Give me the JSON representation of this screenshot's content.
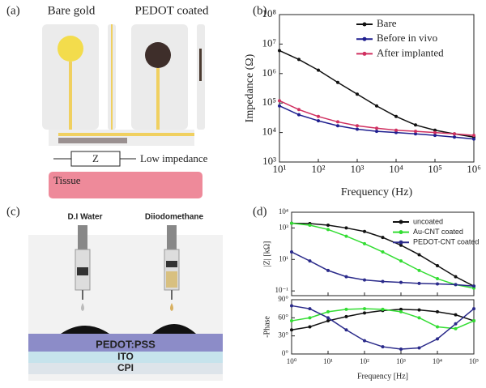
{
  "diagram_a": {
    "panel_label": "(a)",
    "bare": "Bare gold",
    "coated": "PEDOT coated",
    "z": "Z",
    "low": "Low impedance",
    "tissue": "Tissue"
  },
  "diagram_c": {
    "panel_label": "(c)",
    "water": "D.I  Water",
    "diiodo": "Diiodomethane",
    "layers": [
      "PEDOT:PSS",
      "ITO",
      "CPI"
    ]
  },
  "chart_data": [
    {
      "type": "line",
      "panel_label": "(b)",
      "xscale": "log",
      "x": [
        10,
        31.6,
        100,
        316,
        1000,
        3162,
        10000,
        31623,
        100000,
        316228,
        1000000
      ],
      "xlim": [
        10,
        1000000
      ],
      "xticks": [
        {
          "value": 10,
          "label": "10¹"
        },
        {
          "value": 100,
          "label": "10²"
        },
        {
          "value": 1000,
          "label": "10³"
        },
        {
          "value": 10000,
          "label": "10⁴"
        },
        {
          "value": 100000,
          "label": "10⁵"
        },
        {
          "value": 1000000,
          "label": "10⁶"
        }
      ],
      "x_label": "Frequency (Hz)",
      "legend": "upper right",
      "subplots": [
        {
          "yscale": "log",
          "ylim": [
            1000,
            100000000
          ],
          "y_label": "Impedance (Ω)",
          "yticks": [
            {
              "value": 1000,
              "label": "10³"
            },
            {
              "value": 10000,
              "label": "10⁴"
            },
            {
              "value": 100000,
              "label": "10⁵"
            },
            {
              "value": 1000000,
              "label": "10⁶"
            },
            {
              "value": 10000000,
              "label": "10⁷"
            },
            {
              "value": 100000000,
              "label": "10⁸"
            }
          ],
          "series": [
            {
              "name": "Bare",
              "color": "#111111",
              "values": [
                6000000,
                3000000,
                1300000,
                500000,
                200000,
                80000,
                35000,
                18000,
                12000,
                9000,
                7000
              ]
            },
            {
              "name": "Before in vivo",
              "color": "#1f1f8f",
              "values": [
                80000,
                40000,
                25000,
                17000,
                13000,
                11000,
                10000,
                9000,
                8000,
                7000,
                6000
              ]
            },
            {
              "name": "After implanted",
              "color": "#d03060",
              "values": [
                120000,
                60000,
                35000,
                23000,
                17000,
                14000,
                12000,
                11000,
                10000,
                9000,
                8000
              ]
            }
          ]
        }
      ]
    },
    {
      "type": "line",
      "panel_label": "(d)",
      "xscale": "log",
      "x": [
        1,
        3.16,
        10,
        31.6,
        100,
        316,
        1000,
        3162,
        10000,
        31623,
        100000
      ],
      "xlim": [
        1,
        100000
      ],
      "xticks": [
        {
          "value": 1,
          "label": "10⁰"
        },
        {
          "value": 10,
          "label": "10¹"
        },
        {
          "value": 100,
          "label": "10²"
        },
        {
          "value": 1000,
          "label": "10³"
        },
        {
          "value": 10000,
          "label": "10⁴"
        },
        {
          "value": 100000,
          "label": "10⁵"
        }
      ],
      "x_label": "Frequency [Hz]",
      "legend": "upper right",
      "subplots": [
        {
          "yscale": "log",
          "ylim": [
            0.05,
            10000
          ],
          "y_label": "|Z| [kΩ]",
          "yticks": [
            {
              "value": 0.1,
              "label": "10⁻¹"
            },
            {
              "value": 10,
              "label": "10¹"
            },
            {
              "value": 1000,
              "label": "10³"
            },
            {
              "value": 10000,
              "label": "10⁴"
            }
          ],
          "series": [
            {
              "name": "uncoated",
              "color": "#111111",
              "values": [
                2000,
                1900,
                1500,
                1000,
                600,
                250,
                80,
                20,
                4,
                0.8,
                0.2
              ]
            },
            {
              "name": "Au-CNT coated",
              "color": "#33dd33",
              "values": [
                2000,
                1500,
                800,
                300,
                100,
                30,
                8,
                2,
                0.6,
                0.25,
                0.15
              ]
            },
            {
              "name": "PEDOT-CNT coated",
              "color": "#2a2a8a",
              "values": [
                30,
                8,
                2,
                0.8,
                0.5,
                0.4,
                0.35,
                0.3,
                0.28,
                0.25,
                0.2
              ]
            }
          ]
        },
        {
          "yscale": "linear",
          "ylim": [
            0,
            90
          ],
          "y_label": "-Phase",
          "yticks": [
            {
              "value": 0,
              "label": "0°"
            },
            {
              "value": 30,
              "label": "30°"
            },
            {
              "value": 60,
              "label": "60°"
            },
            {
              "value": 90,
              "label": "90°"
            }
          ],
          "series": [
            {
              "color": "#111111",
              "values": [
                40,
                45,
                55,
                62,
                68,
                72,
                74,
                73,
                70,
                65,
                55
              ]
            },
            {
              "color": "#33dd33",
              "values": [
                55,
                60,
                70,
                74,
                75,
                74,
                70,
                60,
                45,
                42,
                55
              ]
            },
            {
              "color": "#2a2a8a",
              "values": [
                80,
                75,
                60,
                40,
                22,
                12,
                8,
                10,
                25,
                50,
                75
              ]
            }
          ]
        }
      ]
    }
  ]
}
